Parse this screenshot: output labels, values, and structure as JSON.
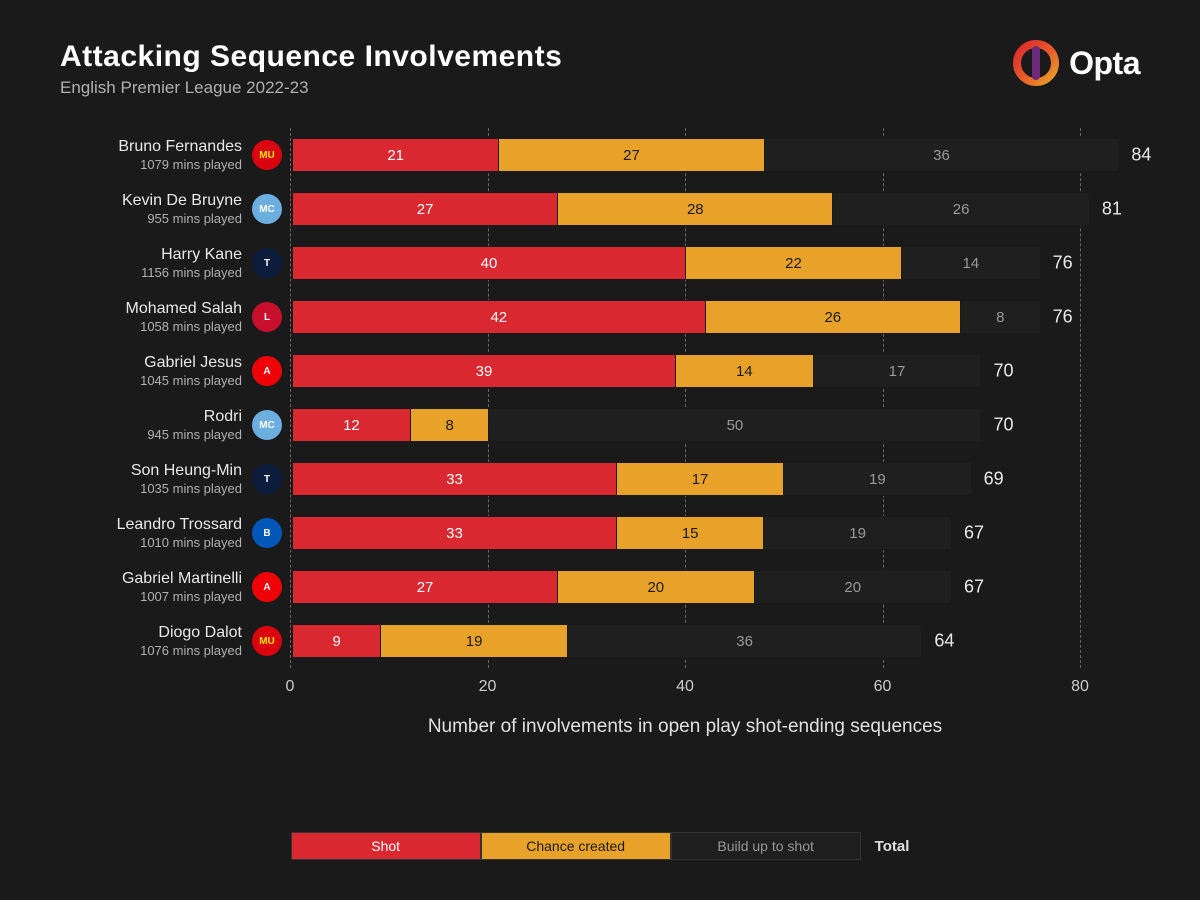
{
  "title": "Attacking Sequence Involvements",
  "subtitle": "English Premier League 2022-23",
  "brand": "Opta",
  "x_axis": {
    "label": "Number of involvements in open play shot-ending sequences",
    "min": 0,
    "max": 80,
    "ticks": [
      0,
      20,
      40,
      60,
      80
    ]
  },
  "colors": {
    "background": "#1a1a1a",
    "shot": "#d9282f",
    "chance": "#e8a22a",
    "build": "#1f1f1f",
    "grid": "#666666",
    "text": "#e8e8e8",
    "subtext": "#b0b0b0"
  },
  "teams": {
    "MUN": {
      "bg": "#da020e",
      "fg": "#ffe500",
      "abbr": "MU"
    },
    "MCI": {
      "bg": "#6caee0",
      "fg": "#ffffff",
      "abbr": "MC"
    },
    "TOT": {
      "bg": "#0b1c3d",
      "fg": "#ffffff",
      "abbr": "T"
    },
    "LIV": {
      "bg": "#c8102e",
      "fg": "#ffffff",
      "abbr": "L"
    },
    "ARS": {
      "bg": "#ef0107",
      "fg": "#ffffff",
      "abbr": "A"
    },
    "BHA": {
      "bg": "#0057b8",
      "fg": "#ffffff",
      "abbr": "B"
    }
  },
  "series": [
    {
      "key": "shot",
      "label": "Shot",
      "text_color": "#ffffff"
    },
    {
      "key": "chance",
      "label": "Chance created",
      "text_color": "#1a1a1a"
    },
    {
      "key": "build",
      "label": "Build up to shot",
      "text_color": "#999999"
    }
  ],
  "legend_total_label": "Total",
  "players": [
    {
      "name": "Bruno Fernandes",
      "mins": "1079 mins played",
      "team": "MUN",
      "shot": 21,
      "chance": 27,
      "build": 36,
      "total": 84
    },
    {
      "name": "Kevin De Bruyne",
      "mins": "955 mins played",
      "team": "MCI",
      "shot": 27,
      "chance": 28,
      "build": 26,
      "total": 81
    },
    {
      "name": "Harry Kane",
      "mins": "1156 mins played",
      "team": "TOT",
      "shot": 40,
      "chance": 22,
      "build": 14,
      "total": 76
    },
    {
      "name": "Mohamed Salah",
      "mins": "1058 mins played",
      "team": "LIV",
      "shot": 42,
      "chance": 26,
      "build": 8,
      "total": 76
    },
    {
      "name": "Gabriel Jesus",
      "mins": "1045 mins played",
      "team": "ARS",
      "shot": 39,
      "chance": 14,
      "build": 17,
      "total": 70
    },
    {
      "name": "Rodri",
      "mins": "945 mins played",
      "team": "MCI",
      "shot": 12,
      "chance": 8,
      "build": 50,
      "total": 70
    },
    {
      "name": "Son Heung-Min",
      "mins": "1035 mins played",
      "team": "TOT",
      "shot": 33,
      "chance": 17,
      "build": 19,
      "total": 69
    },
    {
      "name": "Leandro Trossard",
      "mins": "1010 mins played",
      "team": "BHA",
      "shot": 33,
      "chance": 15,
      "build": 19,
      "total": 67
    },
    {
      "name": "Gabriel Martinelli",
      "mins": "1007 mins played",
      "team": "ARS",
      "shot": 27,
      "chance": 20,
      "build": 20,
      "total": 67
    },
    {
      "name": "Diogo Dalot",
      "mins": "1076 mins played",
      "team": "MUN",
      "shot": 9,
      "chance": 19,
      "build": 36,
      "total": 64
    }
  ]
}
